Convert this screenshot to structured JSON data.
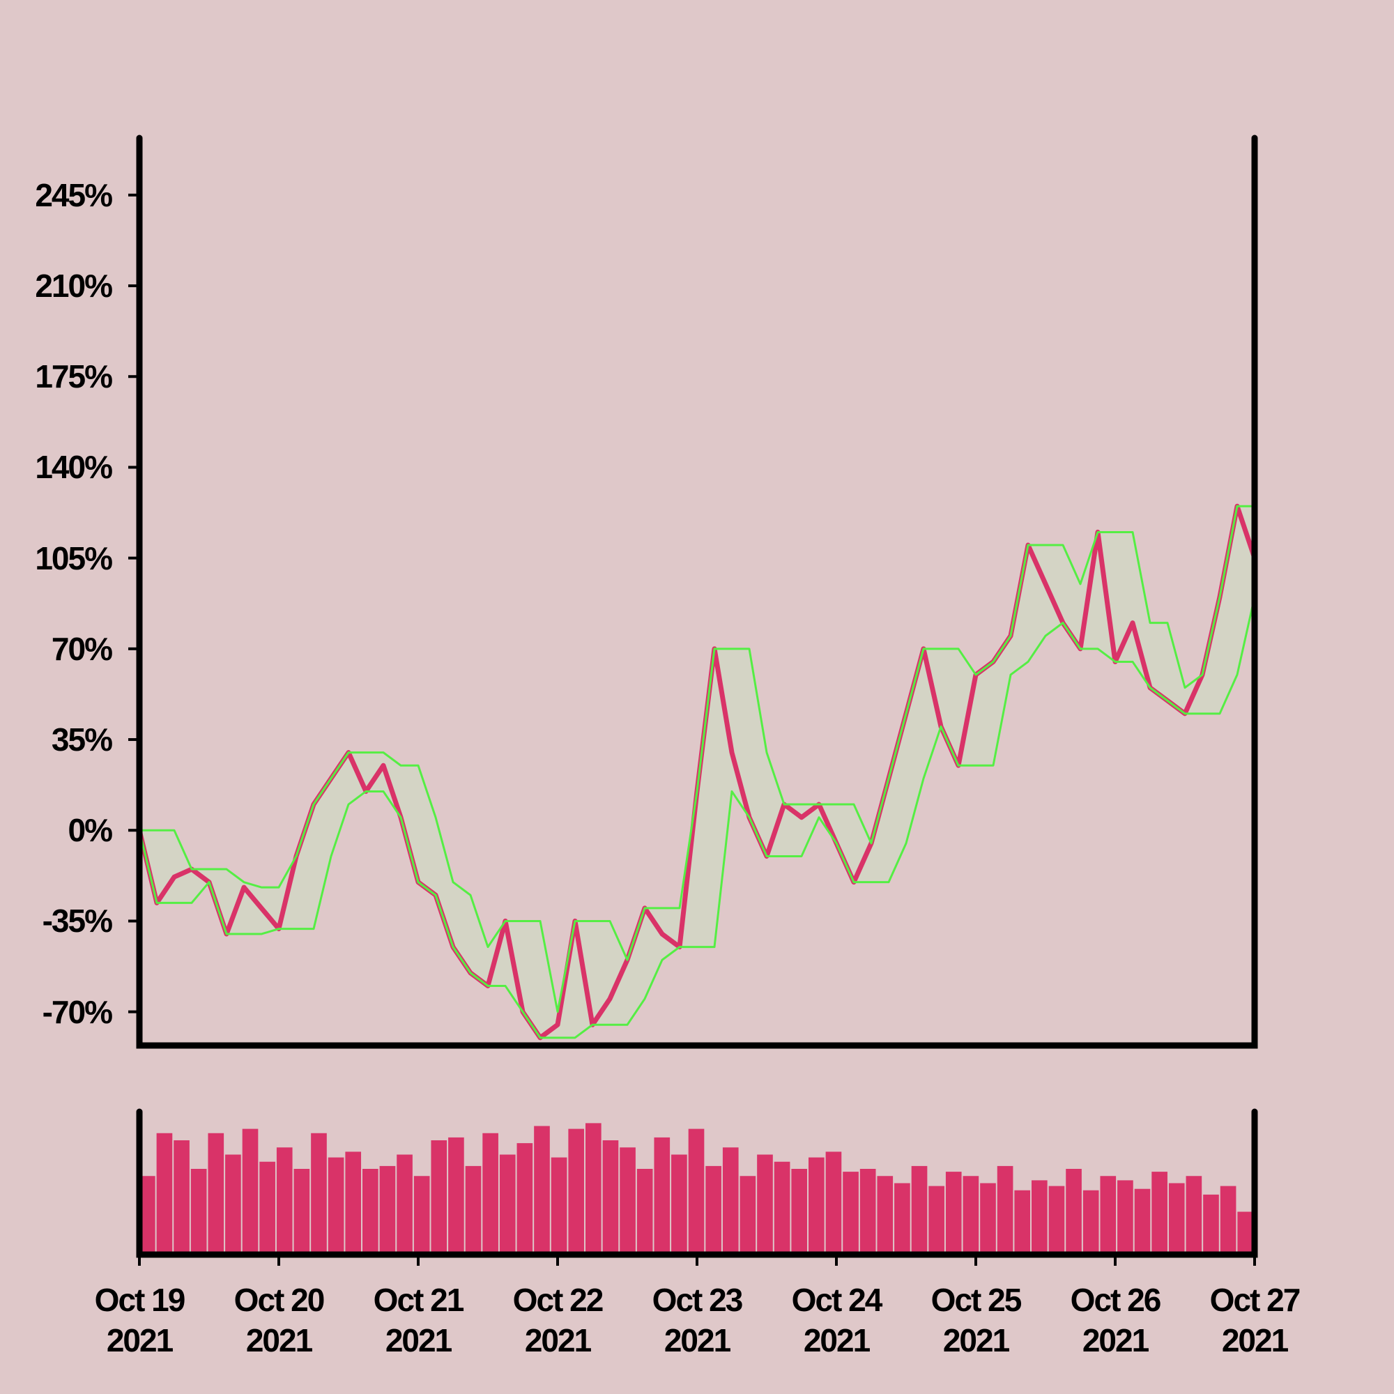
{
  "chart_data": [
    {
      "type": "line",
      "categories": [
        "Oct 19\n2021",
        null,
        null,
        null,
        null,
        null,
        null,
        null,
        "Oct 20\n2021",
        null,
        null,
        null,
        null,
        null,
        null,
        null,
        "Oct 21\n2021",
        null,
        null,
        null,
        null,
        null,
        null,
        null,
        "Oct 22\n2021",
        null,
        null,
        null,
        null,
        null,
        null,
        null,
        "Oct 23\n2021",
        null,
        null,
        null,
        null,
        null,
        null,
        null,
        "Oct 24\n2021",
        null,
        null,
        null,
        null,
        null,
        null,
        null,
        "Oct 25\n2021",
        null,
        null,
        null,
        null,
        null,
        null,
        null,
        "Oct 26\n2021",
        null,
        null,
        null,
        null,
        null,
        null,
        null,
        "Oct 27\n2021"
      ],
      "series": [
        {
          "color": "#d93368",
          "values": [
            0,
            -28,
            -18,
            -15,
            -20,
            -40,
            -22,
            -30,
            -38,
            -10,
            10,
            20,
            30,
            15,
            25,
            5,
            -20,
            -25,
            -45,
            -55,
            -60,
            -35,
            -70,
            -80,
            -75,
            -35,
            -75,
            -65,
            -50,
            -30,
            -40,
            -45,
            15,
            70,
            30,
            5,
            -10,
            10,
            5,
            10,
            -5,
            -20,
            -5,
            20,
            45,
            70,
            40,
            25,
            60,
            65,
            75,
            110,
            95,
            80,
            70,
            115,
            65,
            80,
            55,
            50,
            45,
            60,
            90,
            125,
            105
          ]
        },
        {
          "color": "#55ee44",
          "values": [
            0,
            0,
            0,
            -15,
            -15,
            -15,
            -20,
            -22,
            -22,
            -10,
            10,
            20,
            30,
            30,
            30,
            25,
            25,
            5,
            -20,
            -25,
            -45,
            -35,
            -35,
            -35,
            -70,
            -35,
            -35,
            -35,
            -50,
            -30,
            -30,
            -30,
            15,
            70,
            70,
            70,
            30,
            10,
            10,
            10,
            10,
            10,
            -5,
            20,
            45,
            70,
            70,
            70,
            60,
            65,
            75,
            110,
            110,
            110,
            95,
            115,
            115,
            115,
            80,
            80,
            55,
            60,
            90,
            125,
            125
          ]
        },
        {
          "color": "#55ee44",
          "values": [
            0,
            -28,
            -28,
            -28,
            -20,
            -40,
            -40,
            -40,
            -38,
            -38,
            -38,
            -10,
            10,
            15,
            15,
            5,
            -20,
            -25,
            -45,
            -55,
            -60,
            -60,
            -70,
            -80,
            -80,
            -80,
            -75,
            -75,
            -75,
            -65,
            -50,
            -45,
            -45,
            -45,
            15,
            5,
            -10,
            -10,
            -10,
            5,
            -5,
            -20,
            -20,
            -20,
            -5,
            20,
            40,
            25,
            25,
            25,
            60,
            65,
            75,
            80,
            70,
            70,
            65,
            65,
            55,
            50,
            45,
            45,
            45,
            60,
            90
          ]
        }
      ],
      "band_color": "#d2d6c4",
      "ylim": [
        -83,
        267
      ],
      "yticks": [
        {
          "value": -70,
          "label": "-70%"
        },
        {
          "value": -35,
          "label": "-35%"
        },
        {
          "value": 0,
          "label": "0%"
        },
        {
          "value": 35,
          "label": "35%"
        },
        {
          "value": 70,
          "label": "70%"
        },
        {
          "value": 105,
          "label": "105%"
        },
        {
          "value": 140,
          "label": "140%"
        },
        {
          "value": 175,
          "label": "175%"
        },
        {
          "value": 210,
          "label": "210%"
        },
        {
          "value": 245,
          "label": "245%"
        }
      ]
    },
    {
      "type": "bar",
      "color": "#d93368",
      "values": [
        55,
        85,
        80,
        60,
        85,
        70,
        88,
        65,
        75,
        60,
        85,
        68,
        72,
        60,
        62,
        70,
        55,
        80,
        82,
        62,
        85,
        70,
        78,
        90,
        68,
        88,
        92,
        80,
        75,
        60,
        82,
        70,
        88,
        62,
        75,
        55,
        70,
        65,
        60,
        68,
        72,
        58,
        60,
        55,
        50,
        62,
        48,
        58,
        55,
        50,
        62,
        45,
        52,
        48,
        60,
        45,
        55,
        52,
        46,
        58,
        50,
        55,
        42,
        48,
        30
      ],
      "ylim": [
        0,
        100
      ]
    }
  ]
}
